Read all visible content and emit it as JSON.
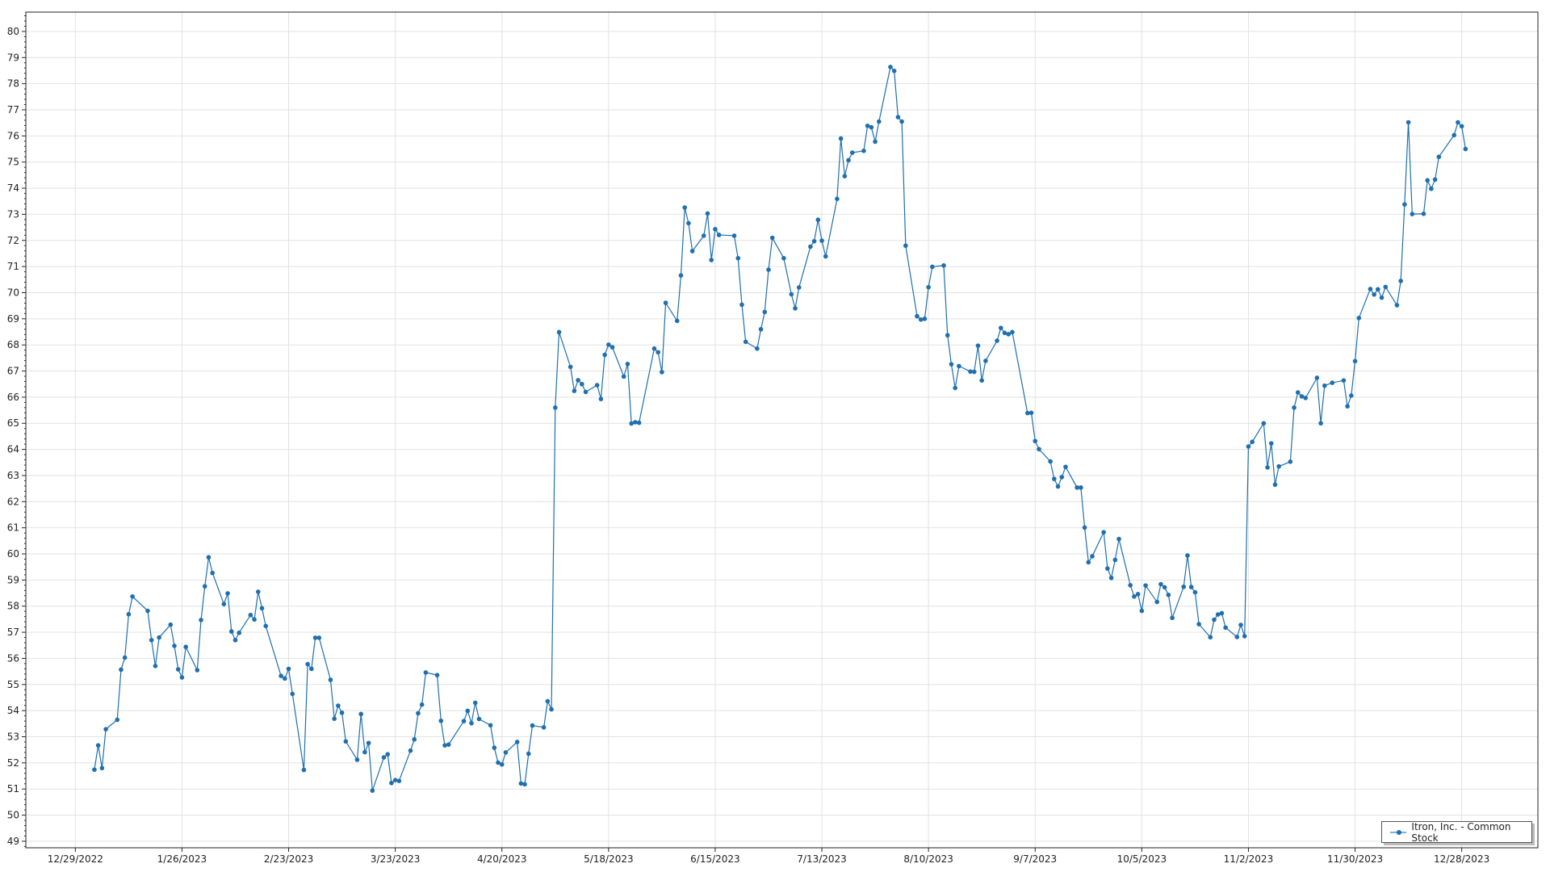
{
  "chart_data": {
    "type": "line",
    "title": "",
    "xlabel": "",
    "ylabel": "",
    "x_range": [
      "2022-12-16",
      "2024-01-17"
    ],
    "ylim": [
      48.75,
      80.74
    ],
    "y_ticks": [
      49,
      50,
      51,
      52,
      53,
      54,
      55,
      56,
      57,
      58,
      59,
      60,
      61,
      62,
      63,
      64,
      65,
      66,
      67,
      68,
      69,
      70,
      71,
      72,
      73,
      74,
      75,
      76,
      77,
      78,
      79,
      80
    ],
    "x_tick_labels": [
      "12/29/2022",
      "1/26/2023",
      "2/23/2023",
      "3/23/2023",
      "4/20/2023",
      "5/18/2023",
      "6/15/2023",
      "7/13/2023",
      "8/10/2023",
      "9/7/2023",
      "10/5/2023",
      "11/2/2023",
      "11/30/2023",
      "12/28/2023"
    ],
    "grid": true,
    "legend_position": "bottom-right",
    "series_color": "#1f6fae",
    "series": [
      {
        "name": "Itron, Inc. - Common Stock",
        "points": [
          [
            "2023-01-03",
            51.74
          ],
          [
            "2023-01-04",
            52.67
          ],
          [
            "2023-01-05",
            51.8
          ],
          [
            "2023-01-06",
            53.29
          ],
          [
            "2023-01-09",
            53.65
          ],
          [
            "2023-01-10",
            55.57
          ],
          [
            "2023-01-11",
            56.03
          ],
          [
            "2023-01-12",
            57.69
          ],
          [
            "2023-01-13",
            58.37
          ],
          [
            "2023-01-17",
            57.82
          ],
          [
            "2023-01-18",
            56.7
          ],
          [
            "2023-01-19",
            55.71
          ],
          [
            "2023-01-20",
            56.8
          ],
          [
            "2023-01-23",
            57.29
          ],
          [
            "2023-01-24",
            56.48
          ],
          [
            "2023-01-25",
            55.58
          ],
          [
            "2023-01-26",
            55.27
          ],
          [
            "2023-01-27",
            56.44
          ],
          [
            "2023-01-30",
            55.55
          ],
          [
            "2023-01-31",
            57.47
          ],
          [
            "2023-02-01",
            58.76
          ],
          [
            "2023-02-02",
            59.87
          ],
          [
            "2023-02-03",
            59.27
          ],
          [
            "2023-02-06",
            58.08
          ],
          [
            "2023-02-07",
            58.49
          ],
          [
            "2023-02-08",
            57.03
          ],
          [
            "2023-02-09",
            56.7
          ],
          [
            "2023-02-10",
            56.98
          ],
          [
            "2023-02-13",
            57.66
          ],
          [
            "2023-02-14",
            57.49
          ],
          [
            "2023-02-15",
            58.55
          ],
          [
            "2023-02-16",
            57.92
          ],
          [
            "2023-02-17",
            57.24
          ],
          [
            "2023-02-21",
            55.33
          ],
          [
            "2023-02-22",
            55.23
          ],
          [
            "2023-02-23",
            55.6
          ],
          [
            "2023-02-24",
            54.64
          ],
          [
            "2023-02-27",
            51.73
          ],
          [
            "2023-02-28",
            55.78
          ],
          [
            "2023-03-01",
            55.6
          ],
          [
            "2023-03-02",
            56.79
          ],
          [
            "2023-03-03",
            56.79
          ],
          [
            "2023-03-06",
            55.18
          ],
          [
            "2023-03-07",
            53.69
          ],
          [
            "2023-03-08",
            54.19
          ],
          [
            "2023-03-09",
            53.92
          ],
          [
            "2023-03-10",
            52.82
          ],
          [
            "2023-03-13",
            52.12
          ],
          [
            "2023-03-14",
            53.87
          ],
          [
            "2023-03-15",
            52.41
          ],
          [
            "2023-03-16",
            52.76
          ],
          [
            "2023-03-17",
            50.94
          ],
          [
            "2023-03-20",
            52.21
          ],
          [
            "2023-03-21",
            52.33
          ],
          [
            "2023-03-22",
            51.23
          ],
          [
            "2023-03-23",
            51.34
          ],
          [
            "2023-03-24",
            51.31
          ],
          [
            "2023-03-27",
            52.47
          ],
          [
            "2023-03-28",
            52.9
          ],
          [
            "2023-03-29",
            53.9
          ],
          [
            "2023-03-30",
            54.23
          ],
          [
            "2023-03-31",
            55.46
          ],
          [
            "2023-04-03",
            55.36
          ],
          [
            "2023-04-04",
            53.61
          ],
          [
            "2023-04-05",
            52.67
          ],
          [
            "2023-04-06",
            52.7
          ],
          [
            "2023-04-10",
            53.6
          ],
          [
            "2023-04-11",
            53.99
          ],
          [
            "2023-04-12",
            53.52
          ],
          [
            "2023-04-13",
            54.3
          ],
          [
            "2023-04-14",
            53.68
          ],
          [
            "2023-04-17",
            53.44
          ],
          [
            "2023-04-18",
            52.58
          ],
          [
            "2023-04-19",
            52.01
          ],
          [
            "2023-04-20",
            51.94
          ],
          [
            "2023-04-21",
            52.4
          ],
          [
            "2023-04-24",
            52.8
          ],
          [
            "2023-04-25",
            51.21
          ],
          [
            "2023-04-26",
            51.18
          ],
          [
            "2023-04-27",
            52.35
          ],
          [
            "2023-04-28",
            53.43
          ],
          [
            "2023-05-01",
            53.36
          ],
          [
            "2023-05-02",
            54.36
          ],
          [
            "2023-05-03",
            54.05
          ],
          [
            "2023-05-04",
            65.6
          ],
          [
            "2023-05-05",
            68.49
          ],
          [
            "2023-05-08",
            67.16
          ],
          [
            "2023-05-09",
            66.24
          ],
          [
            "2023-05-10",
            66.65
          ],
          [
            "2023-05-11",
            66.5
          ],
          [
            "2023-05-12",
            66.2
          ],
          [
            "2023-05-15",
            66.46
          ],
          [
            "2023-05-16",
            65.93
          ],
          [
            "2023-05-17",
            67.62
          ],
          [
            "2023-05-18",
            68.01
          ],
          [
            "2023-05-19",
            67.91
          ],
          [
            "2023-05-22",
            66.79
          ],
          [
            "2023-05-23",
            67.27
          ],
          [
            "2023-05-24",
            64.99
          ],
          [
            "2023-05-25",
            65.04
          ],
          [
            "2023-05-26",
            65.02
          ],
          [
            "2023-05-30",
            67.86
          ],
          [
            "2023-05-31",
            67.72
          ],
          [
            "2023-06-01",
            66.96
          ],
          [
            "2023-06-02",
            69.61
          ],
          [
            "2023-06-05",
            68.92
          ],
          [
            "2023-06-06",
            70.66
          ],
          [
            "2023-06-07",
            73.26
          ],
          [
            "2023-06-08",
            72.66
          ],
          [
            "2023-06-09",
            71.59
          ],
          [
            "2023-06-12",
            72.18
          ],
          [
            "2023-06-13",
            73.03
          ],
          [
            "2023-06-14",
            71.25
          ],
          [
            "2023-06-15",
            72.43
          ],
          [
            "2023-06-16",
            72.21
          ],
          [
            "2023-06-20",
            72.18
          ],
          [
            "2023-06-21",
            71.32
          ],
          [
            "2023-06-22",
            69.54
          ],
          [
            "2023-06-23",
            68.12
          ],
          [
            "2023-06-26",
            67.86
          ],
          [
            "2023-06-27",
            68.6
          ],
          [
            "2023-06-28",
            69.26
          ],
          [
            "2023-06-29",
            70.88
          ],
          [
            "2023-06-30",
            72.1
          ],
          [
            "2023-07-03",
            71.32
          ],
          [
            "2023-07-05",
            69.94
          ],
          [
            "2023-07-06",
            69.4
          ],
          [
            "2023-07-07",
            70.2
          ],
          [
            "2023-07-10",
            71.76
          ],
          [
            "2023-07-11",
            71.97
          ],
          [
            "2023-07-12",
            72.79
          ],
          [
            "2023-07-13",
            71.99
          ],
          [
            "2023-07-14",
            71.39
          ],
          [
            "2023-07-17",
            73.59
          ],
          [
            "2023-07-18",
            75.9
          ],
          [
            "2023-07-19",
            74.46
          ],
          [
            "2023-07-20",
            75.07
          ],
          [
            "2023-07-21",
            75.36
          ],
          [
            "2023-07-24",
            75.43
          ],
          [
            "2023-07-25",
            76.39
          ],
          [
            "2023-07-26",
            76.33
          ],
          [
            "2023-07-27",
            75.78
          ],
          [
            "2023-07-28",
            76.55
          ],
          [
            "2023-07-31",
            78.64
          ],
          [
            "2023-08-01",
            78.49
          ],
          [
            "2023-08-02",
            76.72
          ],
          [
            "2023-08-03",
            76.55
          ],
          [
            "2023-08-04",
            71.8
          ],
          [
            "2023-08-07",
            69.1
          ],
          [
            "2023-08-08",
            68.97
          ],
          [
            "2023-08-09",
            69.0
          ],
          [
            "2023-08-10",
            70.21
          ],
          [
            "2023-08-11",
            70.99
          ],
          [
            "2023-08-14",
            71.04
          ],
          [
            "2023-08-15",
            68.37
          ],
          [
            "2023-08-16",
            67.26
          ],
          [
            "2023-08-17",
            66.35
          ],
          [
            "2023-08-18",
            67.19
          ],
          [
            "2023-08-21",
            66.98
          ],
          [
            "2023-08-22",
            66.97
          ],
          [
            "2023-08-23",
            67.97
          ],
          [
            "2023-08-24",
            66.64
          ],
          [
            "2023-08-25",
            67.39
          ],
          [
            "2023-08-28",
            68.16
          ],
          [
            "2023-08-29",
            68.65
          ],
          [
            "2023-08-30",
            68.46
          ],
          [
            "2023-08-31",
            68.41
          ],
          [
            "2023-09-01",
            68.49
          ],
          [
            "2023-09-05",
            65.39
          ],
          [
            "2023-09-06",
            65.4
          ],
          [
            "2023-09-07",
            64.32
          ],
          [
            "2023-09-08",
            64.01
          ],
          [
            "2023-09-11",
            63.54
          ],
          [
            "2023-09-12",
            62.87
          ],
          [
            "2023-09-13",
            62.58
          ],
          [
            "2023-09-14",
            62.94
          ],
          [
            "2023-09-15",
            63.33
          ],
          [
            "2023-09-18",
            62.54
          ],
          [
            "2023-09-19",
            62.54
          ],
          [
            "2023-09-20",
            61.01
          ],
          [
            "2023-09-21",
            59.68
          ],
          [
            "2023-09-22",
            59.91
          ],
          [
            "2023-09-25",
            60.83
          ],
          [
            "2023-09-26",
            59.44
          ],
          [
            "2023-09-27",
            59.08
          ],
          [
            "2023-09-28",
            59.77
          ],
          [
            "2023-09-29",
            60.57
          ],
          [
            "2023-10-02",
            58.8
          ],
          [
            "2023-10-03",
            58.37
          ],
          [
            "2023-10-04",
            58.46
          ],
          [
            "2023-10-05",
            57.82
          ],
          [
            "2023-10-06",
            58.79
          ],
          [
            "2023-10-09",
            58.16
          ],
          [
            "2023-10-10",
            58.84
          ],
          [
            "2023-10-11",
            58.72
          ],
          [
            "2023-10-12",
            58.43
          ],
          [
            "2023-10-13",
            57.55
          ],
          [
            "2023-10-16",
            58.74
          ],
          [
            "2023-10-17",
            59.94
          ],
          [
            "2023-10-18",
            58.73
          ],
          [
            "2023-10-19",
            58.53
          ],
          [
            "2023-10-20",
            57.31
          ],
          [
            "2023-10-23",
            56.81
          ],
          [
            "2023-10-24",
            57.48
          ],
          [
            "2023-10-25",
            57.68
          ],
          [
            "2023-10-26",
            57.73
          ],
          [
            "2023-10-27",
            57.18
          ],
          [
            "2023-10-30",
            56.82
          ],
          [
            "2023-10-31",
            57.28
          ],
          [
            "2023-11-01",
            56.85
          ],
          [
            "2023-11-02",
            64.11
          ],
          [
            "2023-11-03",
            64.29
          ],
          [
            "2023-11-06",
            65.0
          ],
          [
            "2023-11-07",
            63.31
          ],
          [
            "2023-11-08",
            64.23
          ],
          [
            "2023-11-09",
            62.65
          ],
          [
            "2023-11-10",
            63.35
          ],
          [
            "2023-11-13",
            63.53
          ],
          [
            "2023-11-14",
            65.6
          ],
          [
            "2023-11-15",
            66.18
          ],
          [
            "2023-11-16",
            66.03
          ],
          [
            "2023-11-17",
            65.97
          ],
          [
            "2023-11-20",
            66.74
          ],
          [
            "2023-11-21",
            65.0
          ],
          [
            "2023-11-22",
            66.44
          ],
          [
            "2023-11-24",
            66.55
          ],
          [
            "2023-11-27",
            66.64
          ],
          [
            "2023-11-28",
            65.65
          ],
          [
            "2023-11-29",
            66.06
          ],
          [
            "2023-11-30",
            67.38
          ],
          [
            "2023-12-01",
            69.03
          ],
          [
            "2023-12-04",
            70.14
          ],
          [
            "2023-12-05",
            69.93
          ],
          [
            "2023-12-06",
            70.13
          ],
          [
            "2023-12-07",
            69.81
          ],
          [
            "2023-12-08",
            70.22
          ],
          [
            "2023-12-11",
            69.52
          ],
          [
            "2023-12-12",
            70.45
          ],
          [
            "2023-12-13",
            73.38
          ],
          [
            "2023-12-14",
            76.52
          ],
          [
            "2023-12-15",
            73.01
          ],
          [
            "2023-12-18",
            73.02
          ],
          [
            "2023-12-19",
            74.3
          ],
          [
            "2023-12-20",
            73.98
          ],
          [
            "2023-12-21",
            74.33
          ],
          [
            "2023-12-22",
            75.2
          ],
          [
            "2023-12-26",
            76.03
          ],
          [
            "2023-12-27",
            76.52
          ],
          [
            "2023-12-28",
            76.37
          ],
          [
            "2023-12-29",
            75.5
          ]
        ]
      }
    ]
  },
  "legend": {
    "label": "Itron, Inc. - Common Stock"
  }
}
